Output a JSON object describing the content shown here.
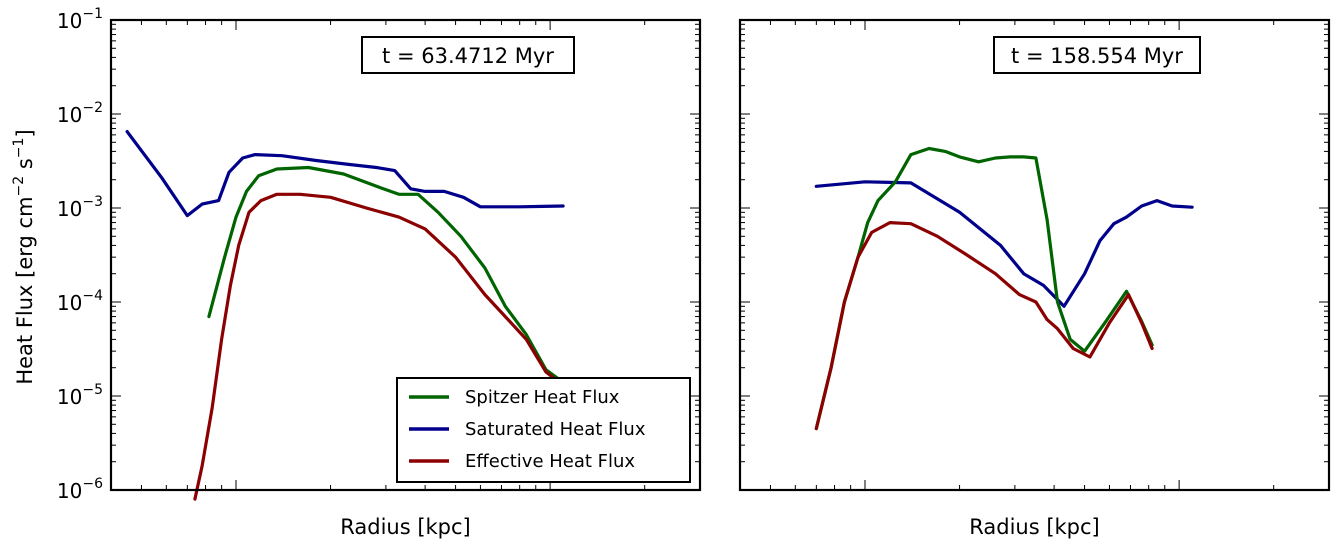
{
  "ylabel": "Heat Flux [erg cm",
  "ylabel_exp1": "−2",
  "ylabel_mid": " s",
  "ylabel_exp2": "−1",
  "ylabel_end": "]",
  "legend": {
    "placement": "lower-right of left panel",
    "entries": [
      {
        "name": "Spitzer Heat Flux",
        "color": "#006400"
      },
      {
        "name": "Saturated Heat Flux",
        "color": "#00008b"
      },
      {
        "name": "Effective Heat Flux",
        "color": "#8b0000"
      }
    ]
  },
  "chart_data": [
    {
      "type": "line",
      "xlabel": "Radius [kpc]",
      "yscale": "log",
      "ylim": [
        1e-06,
        0.1
      ],
      "xscale": "log",
      "xlim": [
        0.4,
        30
      ],
      "annotation": "t = 63.4712 Myr",
      "yticks": [
        {
          "base": "10",
          "exp": "-1",
          "value": 0.1
        },
        {
          "base": "10",
          "exp": "-2",
          "value": 0.01
        },
        {
          "base": "10",
          "exp": "-3",
          "value": 0.001
        },
        {
          "base": "10",
          "exp": "-4",
          "value": 0.0001
        },
        {
          "base": "10",
          "exp": "-5",
          "value": 1e-05
        },
        {
          "base": "10",
          "exp": "-6",
          "value": 1e-06
        }
      ],
      "series": [
        {
          "name": "Saturated Heat Flux",
          "color": "#00008b",
          "x": [
            0.45,
            0.58,
            0.7,
            0.78,
            0.88,
            0.95,
            1.05,
            1.15,
            1.4,
            1.8,
            2.3,
            2.8,
            3.2,
            3.6,
            4.0,
            4.6,
            5.3,
            6.0,
            6.8,
            8.0,
            9.5,
            11.0
          ],
          "y": [
            0.0065,
            0.0021,
            0.00083,
            0.0011,
            0.0012,
            0.0024,
            0.0034,
            0.0037,
            0.0036,
            0.0032,
            0.0029,
            0.0027,
            0.0025,
            0.0016,
            0.0015,
            0.0015,
            0.0013,
            0.00103,
            0.00103,
            0.00103,
            0.00104,
            0.00105
          ]
        },
        {
          "name": "Spitzer Heat Flux",
          "color": "#006400",
          "x": [
            0.82,
            0.92,
            1.0,
            1.08,
            1.18,
            1.35,
            1.7,
            2.2,
            2.8,
            3.3,
            3.8,
            4.4,
            5.2,
            6.2,
            7.2,
            8.4,
            9.7,
            11.0
          ],
          "y": [
            7e-05,
            0.0003,
            0.0008,
            0.0015,
            0.0022,
            0.0026,
            0.0027,
            0.0023,
            0.0017,
            0.0014,
            0.0014,
            0.0009,
            0.0005,
            0.00023,
            9e-05,
            4.5e-05,
            1.9e-05,
            1.4e-05
          ]
        },
        {
          "name": "Effective Heat Flux",
          "color": "#8b0000",
          "x": [
            0.74,
            0.78,
            0.84,
            0.9,
            0.96,
            1.02,
            1.1,
            1.2,
            1.35,
            1.6,
            2.0,
            2.6,
            3.3,
            4.0,
            5.0,
            6.2,
            7.2,
            8.4,
            9.7,
            11.0
          ],
          "y": [
            8e-07,
            1.8e-06,
            7.5e-06,
            4e-05,
            0.00015,
            0.0004,
            0.0009,
            0.0012,
            0.0014,
            0.0014,
            0.0013,
            0.001,
            0.0008,
            0.0006,
            0.0003,
            0.00012,
            7e-05,
            4e-05,
            1.8e-05,
            1.3e-05
          ]
        }
      ]
    },
    {
      "type": "line",
      "xlabel": "Radius [kpc]",
      "yscale": "log",
      "ylim": [
        1e-06,
        0.1
      ],
      "xscale": "log",
      "xlim": [
        0.4,
        30
      ],
      "annotation": "t = 158.554 Myr",
      "series": [
        {
          "name": "Saturated Heat Flux",
          "color": "#00008b",
          "x": [
            0.7,
            1.0,
            1.4,
            2.0,
            2.7,
            3.2,
            3.7,
            4.3,
            5.0,
            5.6,
            6.2,
            6.8,
            7.6,
            8.5,
            9.5,
            11.0
          ],
          "y": [
            0.0017,
            0.0019,
            0.00185,
            0.0009,
            0.0004,
            0.0002,
            0.00015,
            9e-05,
            0.0002,
            0.00045,
            0.00068,
            0.0008,
            0.00105,
            0.0012,
            0.00105,
            0.00102
          ]
        },
        {
          "name": "Spitzer Heat Flux",
          "color": "#006400",
          "x": [
            0.7,
            0.78,
            0.86,
            0.95,
            1.02,
            1.1,
            1.25,
            1.4,
            1.6,
            1.8,
            2.0,
            2.3,
            2.6,
            2.9,
            3.2,
            3.5,
            3.8,
            4.1,
            4.5,
            5.0,
            5.8,
            6.8,
            7.6,
            8.2
          ],
          "y": [
            4.5e-06,
            2e-05,
            0.0001,
            0.0003,
            0.0007,
            0.0012,
            0.0019,
            0.0037,
            0.0043,
            0.004,
            0.0035,
            0.0031,
            0.0034,
            0.0035,
            0.0035,
            0.0034,
            0.00075,
            0.0001,
            4e-05,
            3e-05,
            6e-05,
            0.00013,
            6.2e-05,
            3.5e-05
          ]
        },
        {
          "name": "Effective Heat Flux",
          "color": "#8b0000",
          "x": [
            0.7,
            0.78,
            0.86,
            0.95,
            1.05,
            1.2,
            1.4,
            1.7,
            2.1,
            2.6,
            3.1,
            3.5,
            3.8,
            4.1,
            4.6,
            5.2,
            6.0,
            6.9,
            7.6,
            8.2
          ],
          "y": [
            4.5e-06,
            2e-05,
            0.0001,
            0.0003,
            0.00055,
            0.0007,
            0.00068,
            0.0005,
            0.00032,
            0.0002,
            0.00012,
            0.0001,
            6.5e-05,
            5.2e-05,
            3.2e-05,
            2.6e-05,
            6e-05,
            0.00012,
            6e-05,
            3.2e-05
          ]
        }
      ]
    }
  ]
}
